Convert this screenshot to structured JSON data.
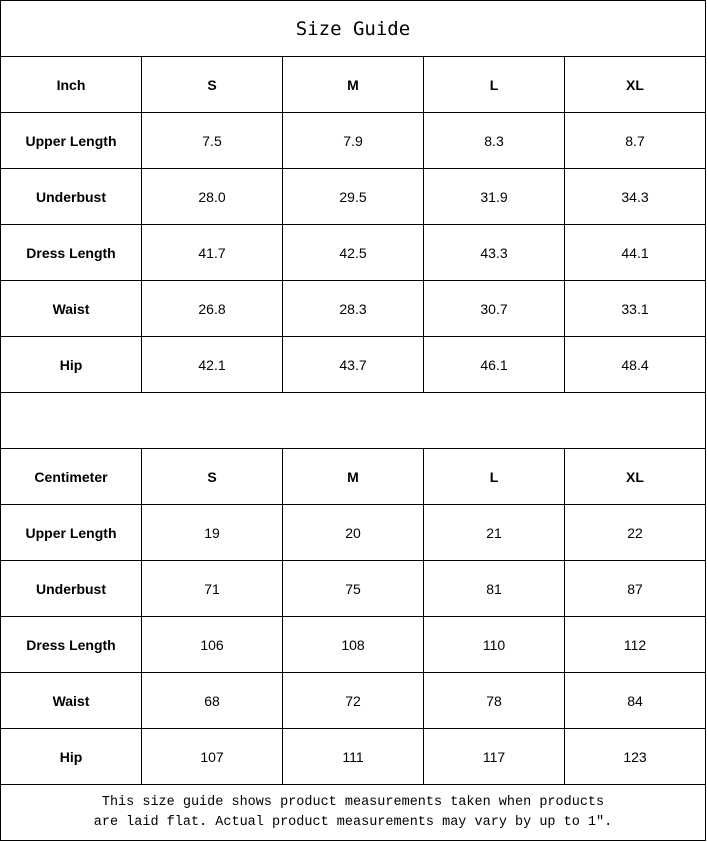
{
  "title": "Size Guide",
  "sizes": [
    "S",
    "M",
    "L",
    "XL"
  ],
  "inch": {
    "unit_label": "Inch",
    "rows": [
      {
        "label": "Upper Length",
        "values": [
          "7.5",
          "7.9",
          "8.3",
          "8.7"
        ]
      },
      {
        "label": "Underbust",
        "values": [
          "28.0",
          "29.5",
          "31.9",
          "34.3"
        ]
      },
      {
        "label": "Dress Length",
        "values": [
          "41.7",
          "42.5",
          "43.3",
          "44.1"
        ]
      },
      {
        "label": "Waist",
        "values": [
          "26.8",
          "28.3",
          "30.7",
          "33.1"
        ]
      },
      {
        "label": "Hip",
        "values": [
          "42.1",
          "43.7",
          "46.1",
          "48.4"
        ]
      }
    ]
  },
  "centimeter": {
    "unit_label": "Centimeter",
    "rows": [
      {
        "label": "Upper Length",
        "values": [
          "19",
          "20",
          "21",
          "22"
        ]
      },
      {
        "label": "Underbust",
        "values": [
          "71",
          "75",
          "81",
          "87"
        ]
      },
      {
        "label": "Dress Length",
        "values": [
          "106",
          "108",
          "110",
          "112"
        ]
      },
      {
        "label": "Waist",
        "values": [
          "68",
          "72",
          "78",
          "84"
        ]
      },
      {
        "label": "Hip",
        "values": [
          "107",
          "111",
          "117",
          "123"
        ]
      }
    ]
  },
  "note": {
    "line1": "This size guide shows product measurements taken when products",
    "line2": "are laid flat. Actual product measurements may vary by up to 1″."
  }
}
